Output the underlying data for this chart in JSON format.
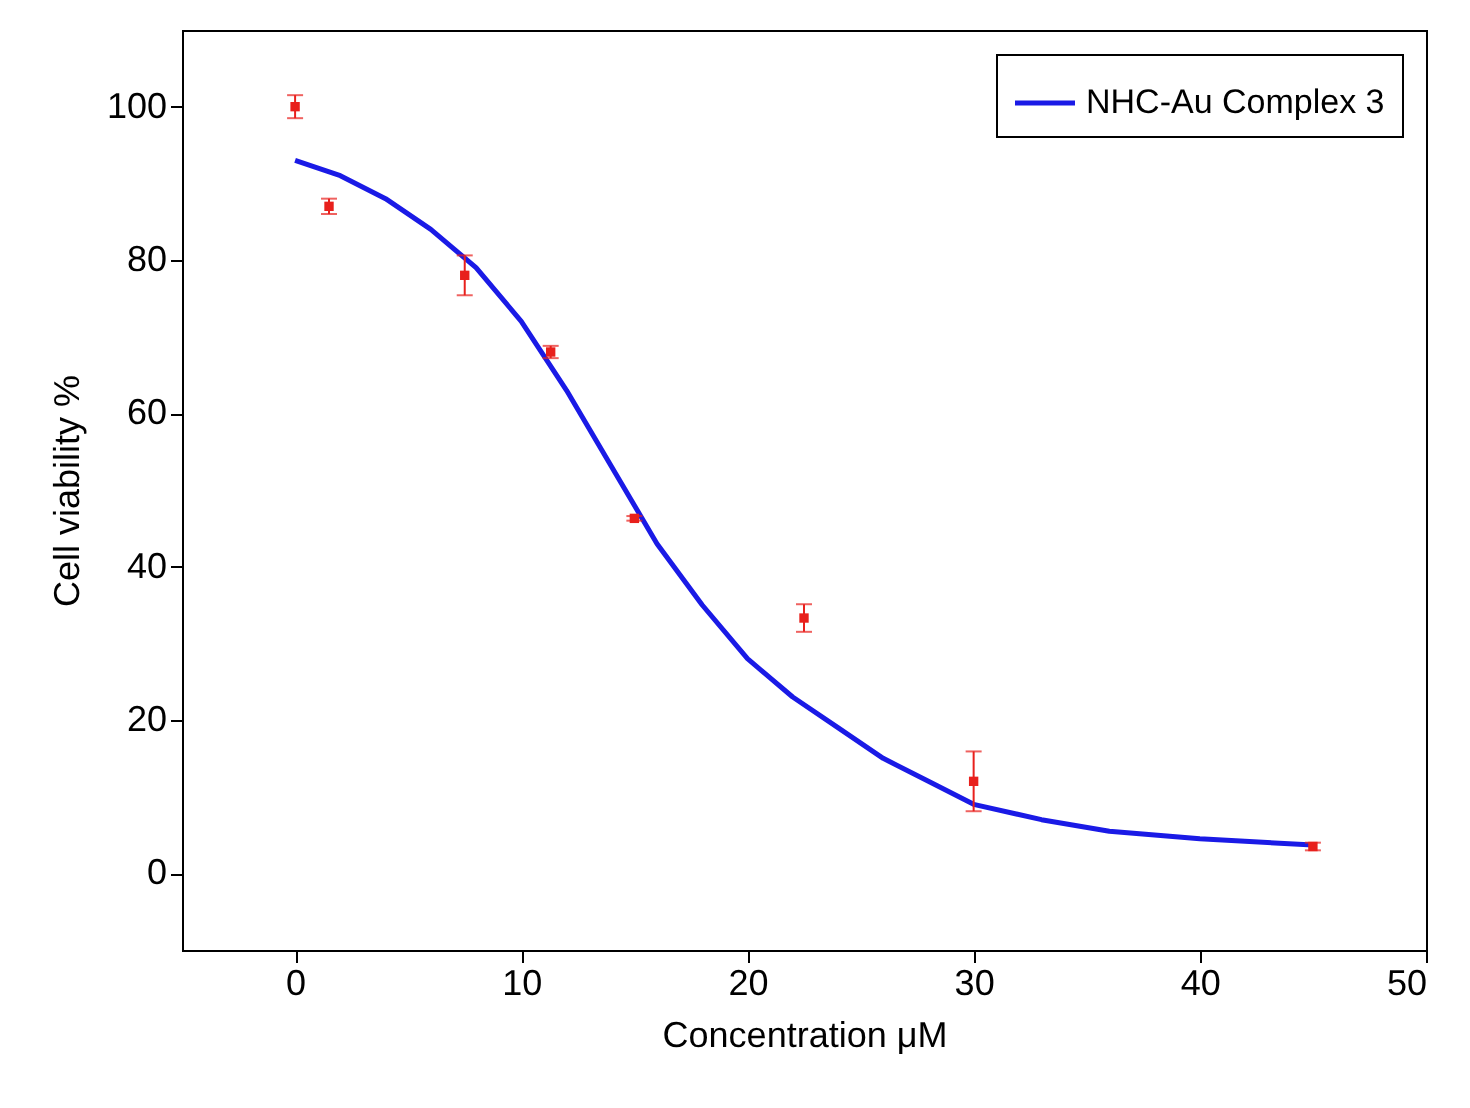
{
  "chart_data": {
    "type": "line",
    "xlabel": "Concentration μM",
    "ylabel": "Cell viability %",
    "xlim": [
      -5,
      50
    ],
    "ylim": [
      -10,
      110
    ],
    "xticks": [
      0,
      10,
      20,
      30,
      40,
      50
    ],
    "yticks": [
      0,
      20,
      40,
      60,
      80,
      100
    ],
    "grid": false,
    "legend": "top right",
    "series": [
      {
        "name": "NHC-Au Complex 3",
        "color": "#1a1ae6",
        "marker": "none",
        "x": [
          0,
          2,
          4,
          6,
          8,
          10,
          12,
          14,
          16,
          18,
          20,
          22,
          24,
          26,
          28,
          30,
          33,
          36,
          40,
          45
        ],
        "values": [
          93,
          91,
          88,
          84,
          79,
          72,
          63,
          53,
          43,
          35,
          28,
          23,
          19,
          15,
          12,
          9,
          7,
          5.5,
          4.5,
          3.7
        ]
      },
      {
        "type": "scatter",
        "marker": "square",
        "color": "#e8201c",
        "x": [
          0,
          1.5,
          7.5,
          11.3,
          15,
          22.5,
          30,
          45
        ],
        "values": [
          100,
          87,
          78,
          68,
          46.3,
          33.3,
          12,
          3.5
        ],
        "errors": [
          1.5,
          1,
          2.6,
          0.8,
          0.3,
          1.8,
          3.9,
          0.5
        ]
      }
    ]
  }
}
